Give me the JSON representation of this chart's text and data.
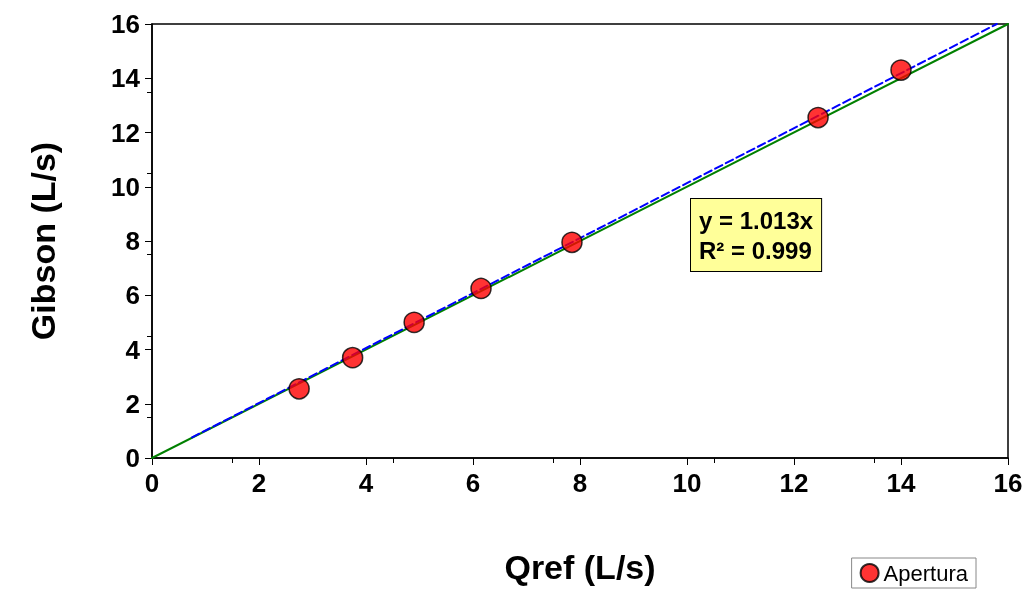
{
  "chart_data": {
    "type": "scatter",
    "xlabel": "Qref (L/s)",
    "ylabel": "Gibson (L/s)",
    "xlim": [
      0,
      16
    ],
    "xticks": [
      0,
      2,
      4,
      6,
      8,
      10,
      12,
      14,
      16
    ],
    "ylim": [
      0,
      16
    ],
    "yticks": [
      0,
      2,
      4,
      6,
      8,
      10,
      12,
      14,
      16
    ],
    "grid": false,
    "legend": "bottom right",
    "annotations": [
      "y = 1.013x",
      "R² = 0.999"
    ],
    "series": [
      {
        "type": "line",
        "color": "#008000",
        "line_style": "solid",
        "marker": "none",
        "x": [
          0,
          16
        ],
        "values": [
          0,
          16
        ]
      },
      {
        "type": "line",
        "color": "#0000ff",
        "line_style": "dashed",
        "marker": "none",
        "x": [
          0.75,
          15.79
        ],
        "values": [
          0.76,
          16
        ]
      },
      {
        "type": "scatter",
        "name": "Apertura",
        "color": "#ff0000",
        "marker": "circle",
        "x": [
          2.75,
          3.75,
          4.9,
          6.15,
          7.85,
          12.45,
          14.0
        ],
        "values": [
          2.55,
          3.7,
          5.0,
          6.25,
          7.95,
          12.55,
          14.3
        ]
      }
    ]
  }
}
